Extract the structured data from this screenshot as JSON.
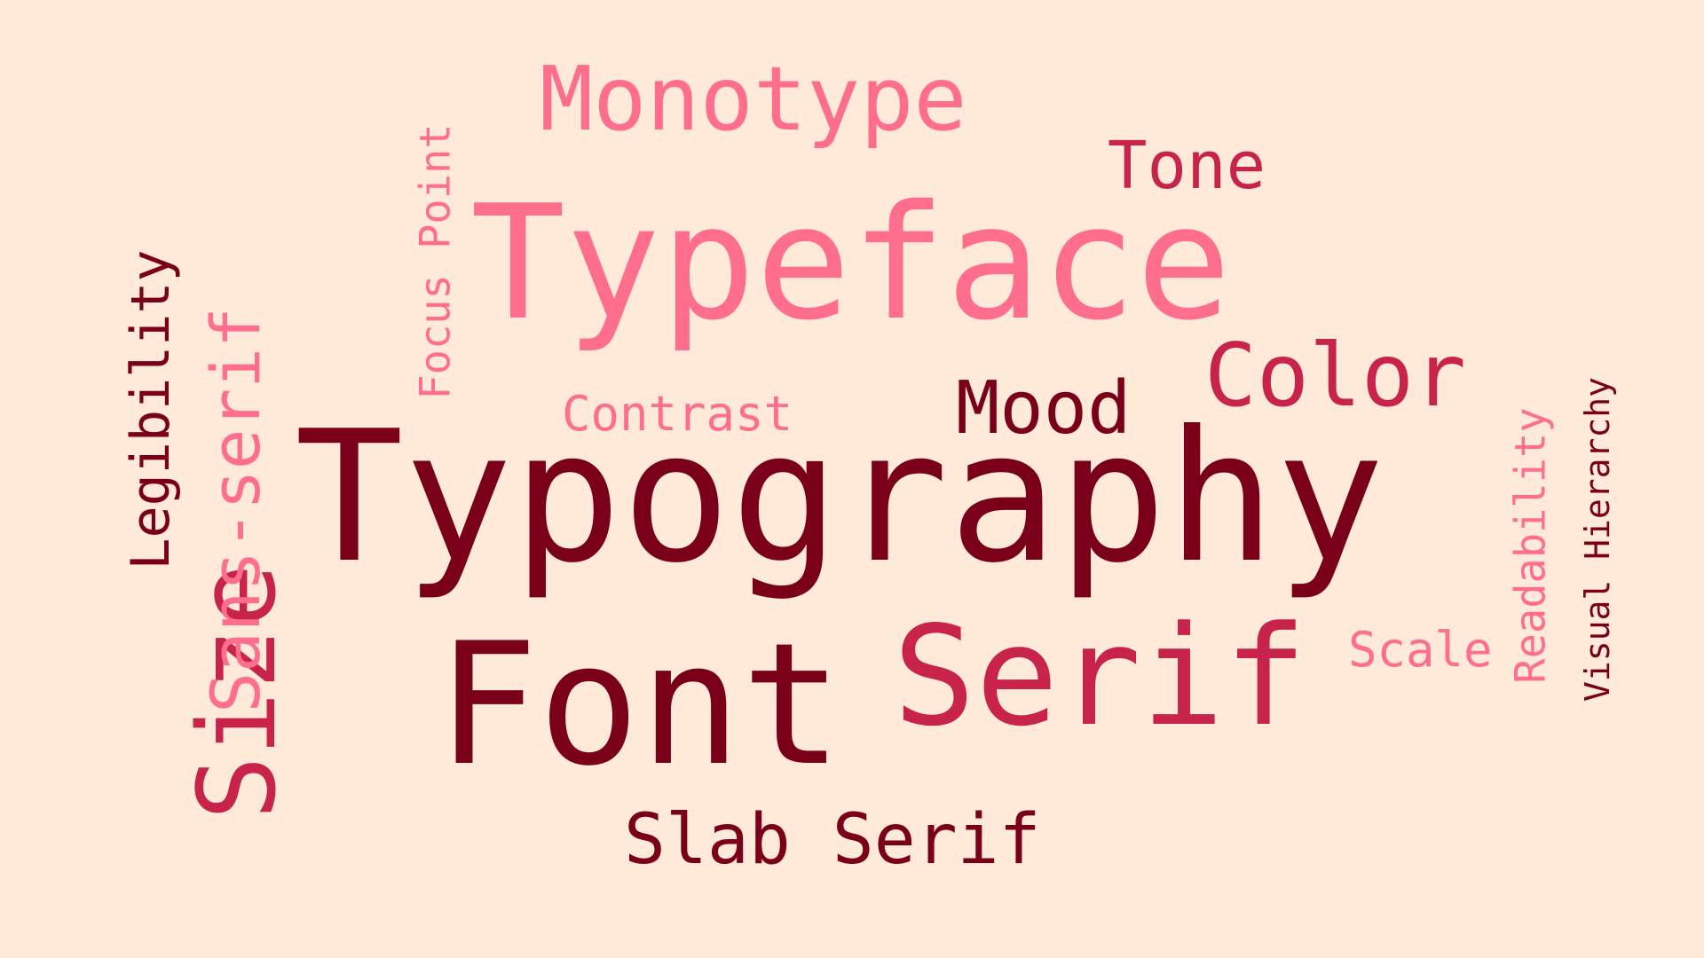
{
  "colors": {
    "background": "#FFE9D8",
    "dark": "#7A0019",
    "mid": "#C8234A",
    "pink": "#FF6E8C"
  },
  "words": {
    "typography": "Typography",
    "typeface": "Typeface",
    "font": "Font",
    "serif": "Serif",
    "monotype": "Monotype",
    "tone": "Tone",
    "color": "Color",
    "mood": "Mood",
    "contrast": "Contrast",
    "scale": "Scale",
    "slab_serif": "Slab Serif",
    "size": "Size",
    "legibility": "Legibility",
    "sans_serif": "Sans-serif",
    "focus_point": "Focus Point",
    "readability": "Readability",
    "visual_hierarchy": "Visual Hierarchy"
  }
}
